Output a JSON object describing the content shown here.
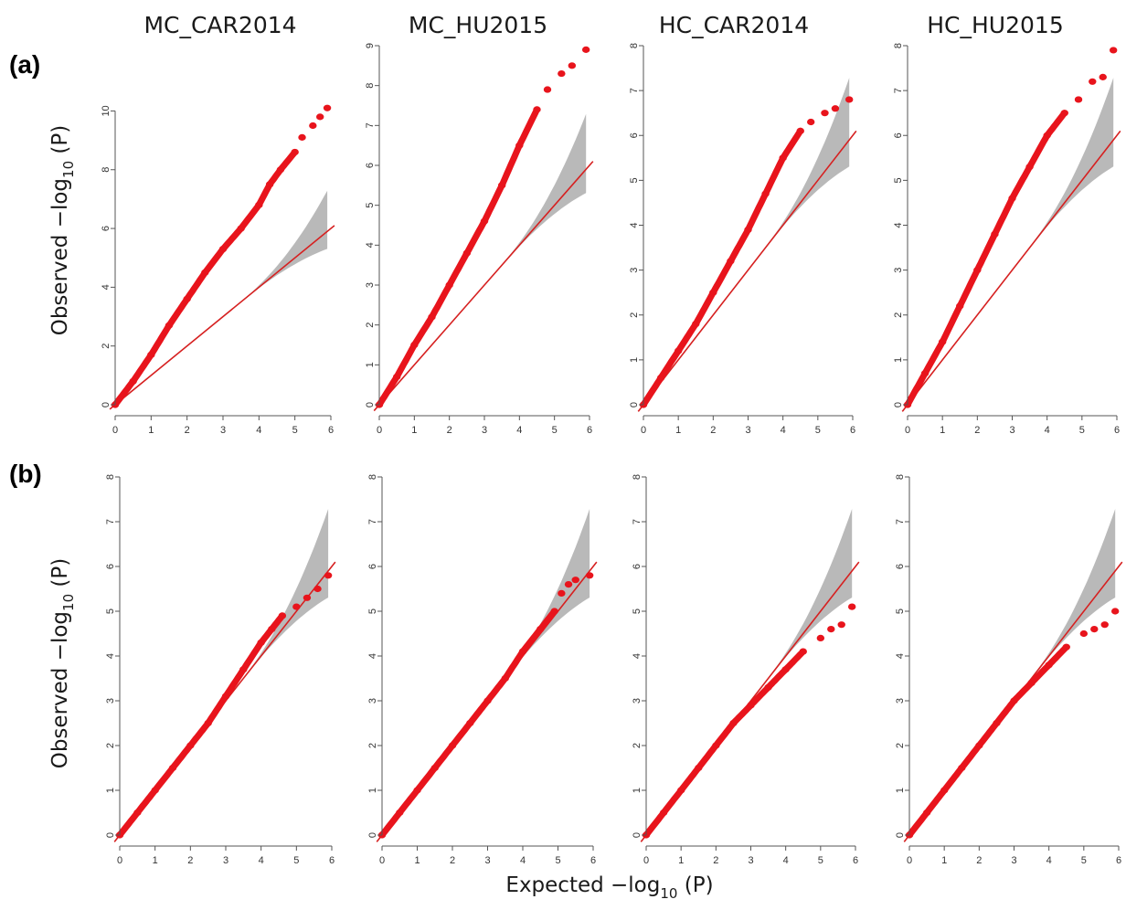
{
  "figure": {
    "panel_labels": [
      "(a)",
      "(b)"
    ],
    "column_titles": [
      "MC_CAR2014",
      "MC_HU2015",
      "HC_CAR2014",
      "HC_HU2015"
    ],
    "ylabel_main": "Observed −log",
    "ylabel_sub": "10",
    "ylabel_tail": " (P)",
    "xlabel_main": "Expected −log",
    "xlabel_sub": "10",
    "xlabel_tail": " (P)",
    "colors": {
      "points": "#e8141c",
      "line": "#d62020",
      "band": "#b9b9b9",
      "axis": "#555555"
    }
  },
  "chart_data": [
    {
      "type": "scatter",
      "row": "(a)",
      "title": "MC_CAR2014",
      "xlim": [
        0,
        6
      ],
      "ylim": [
        0,
        10.2
      ],
      "xticks": [
        0,
        1,
        2,
        3,
        4,
        5,
        6
      ],
      "yticks": [
        0,
        2,
        4,
        6,
        8,
        10
      ],
      "series": [
        {
          "x": [
            0,
            0.5,
            1,
            1.5,
            2,
            2.5,
            3,
            3.5,
            4,
            4.3,
            4.6,
            5,
            5.2,
            5.5,
            5.7,
            5.9
          ],
          "y": [
            0,
            0.8,
            1.7,
            2.7,
            3.6,
            4.5,
            5.3,
            6.0,
            6.8,
            7.5,
            8.0,
            8.6,
            9.1,
            9.5,
            9.8,
            10.1
          ]
        }
      ],
      "reference_line": "y = x",
      "confidence_band": true
    },
    {
      "type": "scatter",
      "row": "(a)",
      "title": "MC_HU2015",
      "xlim": [
        0,
        6
      ],
      "ylim": [
        0,
        9
      ],
      "xticks": [
        0,
        1,
        2,
        3,
        4,
        5,
        6
      ],
      "yticks": [
        0,
        1,
        2,
        3,
        4,
        5,
        6,
        7,
        8,
        9
      ],
      "series": [
        {
          "x": [
            0,
            0.5,
            1,
            1.5,
            2,
            2.5,
            3,
            3.5,
            4,
            4.5,
            4.8,
            5.2,
            5.5,
            5.9
          ],
          "y": [
            0,
            0.7,
            1.5,
            2.2,
            3.0,
            3.8,
            4.6,
            5.5,
            6.5,
            7.4,
            7.9,
            8.3,
            8.5,
            8.9
          ]
        }
      ],
      "reference_line": "y = x",
      "confidence_band": true
    },
    {
      "type": "scatter",
      "row": "(a)",
      "title": "HC_CAR2014",
      "xlim": [
        0,
        6
      ],
      "ylim": [
        0,
        8
      ],
      "xticks": [
        0,
        1,
        2,
        3,
        4,
        5,
        6
      ],
      "yticks": [
        0,
        1,
        2,
        3,
        4,
        5,
        6,
        7,
        8
      ],
      "series": [
        {
          "x": [
            0,
            0.5,
            1,
            1.5,
            2,
            2.5,
            3,
            3.5,
            4,
            4.5,
            4.8,
            5.2,
            5.5,
            5.9
          ],
          "y": [
            0,
            0.6,
            1.2,
            1.8,
            2.5,
            3.2,
            3.9,
            4.7,
            5.5,
            6.1,
            6.3,
            6.5,
            6.6,
            6.8
          ]
        }
      ],
      "reference_line": "y = x",
      "confidence_band": true
    },
    {
      "type": "scatter",
      "row": "(a)",
      "title": "HC_HU2015",
      "xlim": [
        0,
        6
      ],
      "ylim": [
        0,
        8
      ],
      "xticks": [
        0,
        1,
        2,
        3,
        4,
        5,
        6
      ],
      "yticks": [
        0,
        1,
        2,
        3,
        4,
        5,
        6,
        7,
        8
      ],
      "series": [
        {
          "x": [
            0,
            0.5,
            1,
            1.5,
            2,
            2.5,
            3,
            3.5,
            4,
            4.5,
            4.9,
            5.3,
            5.6,
            5.9
          ],
          "y": [
            0,
            0.7,
            1.4,
            2.2,
            3.0,
            3.8,
            4.6,
            5.3,
            6.0,
            6.5,
            6.8,
            7.2,
            7.3,
            7.9
          ]
        }
      ],
      "reference_line": "y = x",
      "confidence_band": true
    },
    {
      "type": "scatter",
      "row": "(b)",
      "title": "MC_CAR2014",
      "xlim": [
        0,
        6
      ],
      "ylim": [
        0,
        8
      ],
      "xticks": [
        0,
        1,
        2,
        3,
        4,
        5,
        6
      ],
      "yticks": [
        0,
        1,
        2,
        3,
        4,
        5,
        6,
        7,
        8
      ],
      "series": [
        {
          "x": [
            0,
            0.5,
            1,
            1.5,
            2,
            2.5,
            3,
            3.5,
            4,
            4.3,
            4.6,
            5,
            5.3,
            5.6,
            5.9
          ],
          "y": [
            0,
            0.5,
            1.0,
            1.5,
            2.0,
            2.5,
            3.1,
            3.7,
            4.3,
            4.6,
            4.9,
            5.1,
            5.3,
            5.5,
            5.8
          ]
        }
      ],
      "reference_line": "y = x",
      "confidence_band": true
    },
    {
      "type": "scatter",
      "row": "(b)",
      "title": "MC_HU2015",
      "xlim": [
        0,
        6
      ],
      "ylim": [
        0,
        8
      ],
      "xticks": [
        0,
        1,
        2,
        3,
        4,
        5,
        6
      ],
      "yticks": [
        0,
        1,
        2,
        3,
        4,
        5,
        6,
        7,
        8
      ],
      "series": [
        {
          "x": [
            0,
            0.5,
            1,
            1.5,
            2,
            2.5,
            3,
            3.5,
            4,
            4.5,
            4.9,
            5.1,
            5.3,
            5.5,
            5.9
          ],
          "y": [
            0,
            0.5,
            1.0,
            1.5,
            2.0,
            2.5,
            3.0,
            3.5,
            4.1,
            4.6,
            5.0,
            5.4,
            5.6,
            5.7,
            5.8
          ]
        }
      ],
      "reference_line": "y = x",
      "confidence_band": true
    },
    {
      "type": "scatter",
      "row": "(b)",
      "title": "HC_CAR2014",
      "xlim": [
        0,
        6
      ],
      "ylim": [
        0,
        8
      ],
      "xticks": [
        0,
        1,
        2,
        3,
        4,
        5,
        6
      ],
      "yticks": [
        0,
        1,
        2,
        3,
        4,
        5,
        6,
        7,
        8
      ],
      "series": [
        {
          "x": [
            0,
            0.5,
            1,
            1.5,
            2,
            2.5,
            3,
            3.5,
            4,
            4.5,
            5,
            5.3,
            5.6,
            5.9
          ],
          "y": [
            0,
            0.5,
            1.0,
            1.5,
            2.0,
            2.5,
            2.9,
            3.3,
            3.7,
            4.1,
            4.4,
            4.6,
            4.7,
            5.1
          ]
        }
      ],
      "reference_line": "y = x",
      "confidence_band": true
    },
    {
      "type": "scatter",
      "row": "(b)",
      "title": "HC_HU2015",
      "xlim": [
        0,
        6
      ],
      "ylim": [
        0,
        8
      ],
      "xticks": [
        0,
        1,
        2,
        3,
        4,
        5,
        6
      ],
      "yticks": [
        0,
        1,
        2,
        3,
        4,
        5,
        6,
        7,
        8
      ],
      "series": [
        {
          "x": [
            0,
            0.5,
            1,
            1.5,
            2,
            2.5,
            3,
            3.5,
            4,
            4.5,
            5,
            5.3,
            5.6,
            5.9
          ],
          "y": [
            0,
            0.5,
            1.0,
            1.5,
            2.0,
            2.5,
            3.0,
            3.4,
            3.8,
            4.2,
            4.5,
            4.6,
            4.7,
            5.0
          ]
        }
      ],
      "reference_line": "y = x",
      "confidence_band": true
    }
  ]
}
